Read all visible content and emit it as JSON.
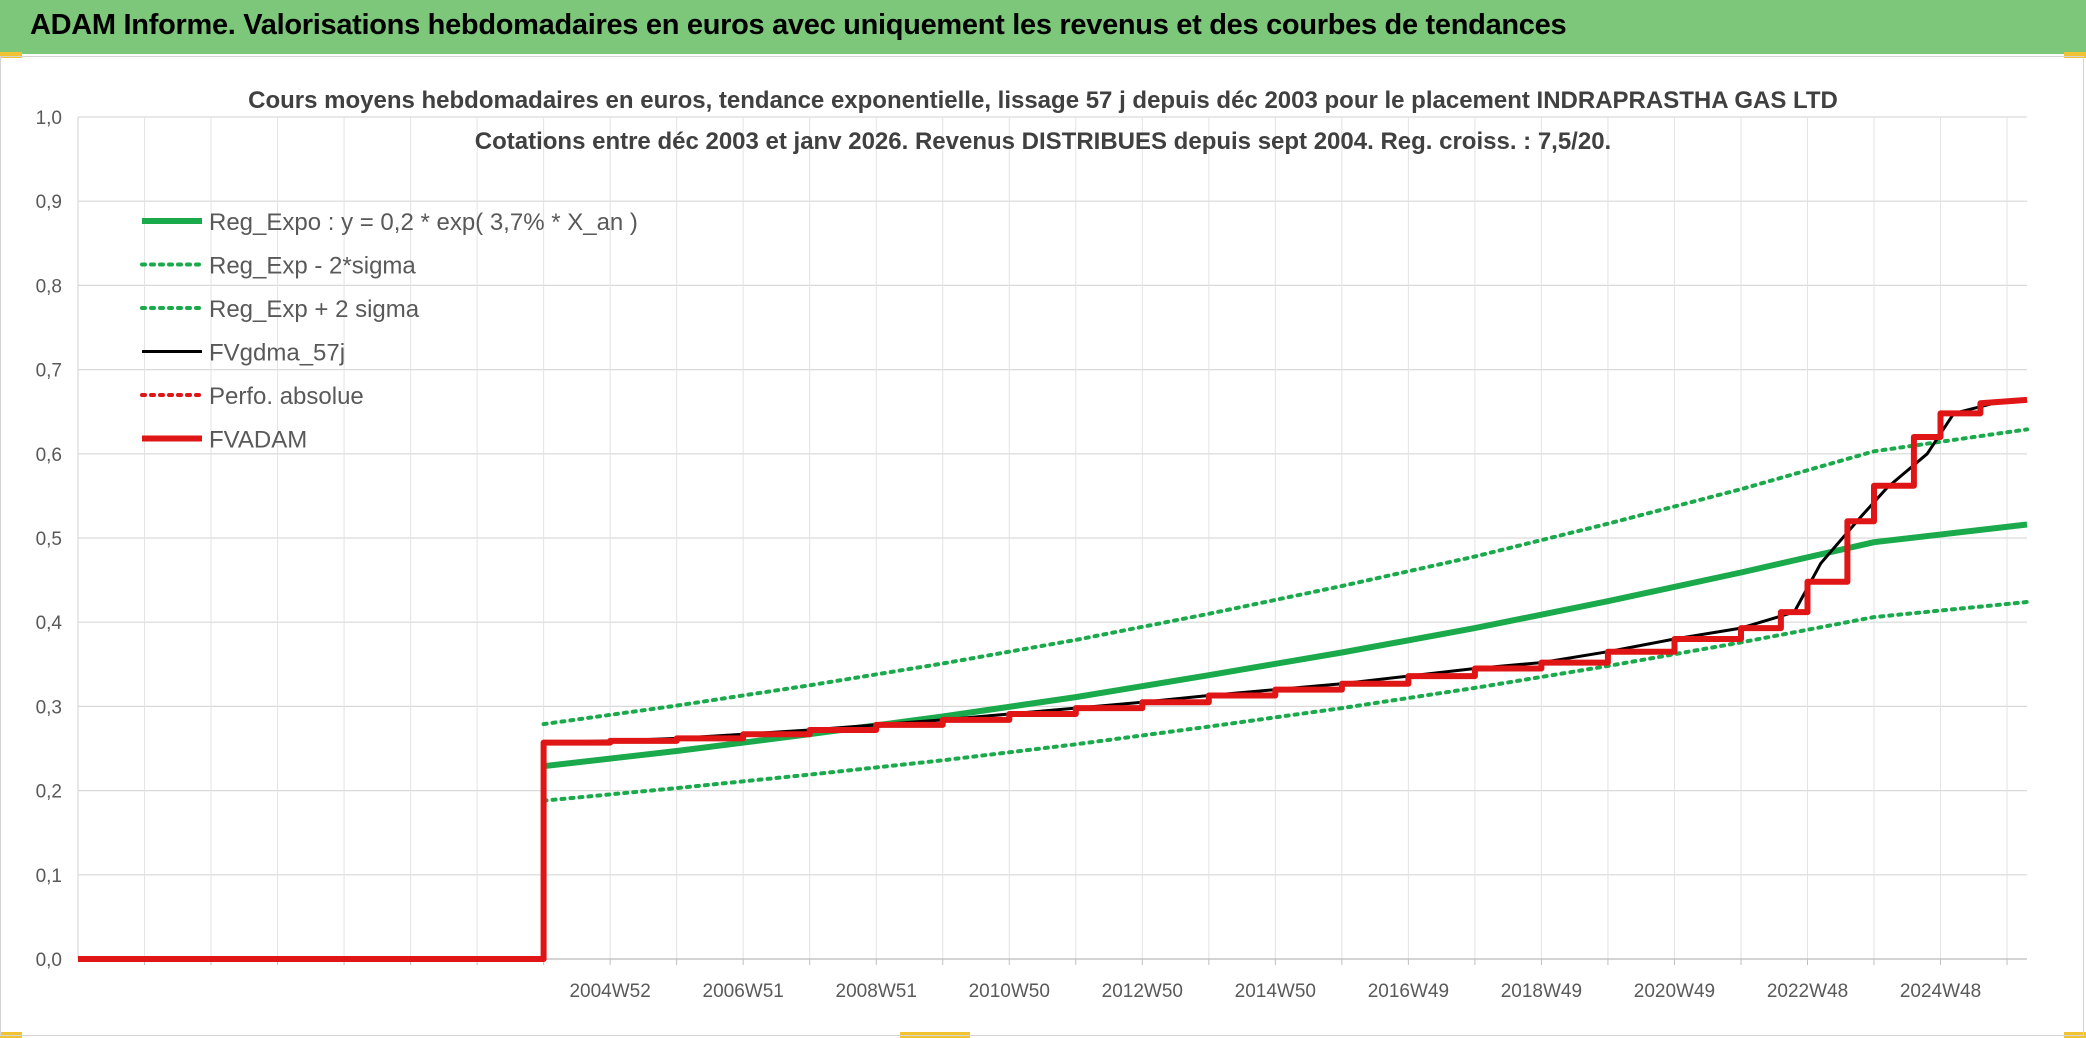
{
  "header": {
    "title": "ADAM Informe. Valorisations hebdomadaires en euros avec uniquement les revenus et des courbes de tendances"
  },
  "colors": {
    "header_bg": "#7dc77a",
    "reg_expo": "#1aaa4b",
    "sigma": "#1aaa4b",
    "fvgdma": "#000000",
    "perfo": "#e01515",
    "fvadam": "#e01515",
    "grid": "#d9d9d9"
  },
  "chart_data": {
    "type": "line",
    "title_line1": "Cours moyens hebdomadaires en euros, tendance exponentielle, lissage 57 j depuis déc 2003 pour le placement INDRAPRASTHA GAS LTD",
    "title_line2": "Cotations entre déc 2003 et janv 2026. Revenus DISTRIBUES depuis sept 2004. Reg. croiss. : 7,5/20.",
    "x_unit": "year",
    "xlim": [
      1997.0,
      2026.3
    ],
    "ylim": [
      0,
      1.0
    ],
    "y_ticks": [
      "0,0",
      "0,1",
      "0,2",
      "0,3",
      "0,4",
      "0,5",
      "0,6",
      "0,7",
      "0,8",
      "0,9",
      "1,0"
    ],
    "x_ticks": [
      {
        "label": "2004W52",
        "x": 2005.0
      },
      {
        "label": "2006W51",
        "x": 2007.0
      },
      {
        "label": "2008W51",
        "x": 2009.0
      },
      {
        "label": "2010W50",
        "x": 2011.0
      },
      {
        "label": "2012W50",
        "x": 2013.0
      },
      {
        "label": "2014W50",
        "x": 2015.0
      },
      {
        "label": "2016W49",
        "x": 2017.0
      },
      {
        "label": "2018W49",
        "x": 2019.0
      },
      {
        "label": "2020W49",
        "x": 2021.0
      },
      {
        "label": "2022W48",
        "x": 2023.0
      },
      {
        "label": "2024W48",
        "x": 2025.0
      }
    ],
    "legend_position": "top-left",
    "series": [
      {
        "name": "Reg_Expo : y = 0,2 * exp( 3,7% *  X_an )",
        "style": "solid-thick",
        "color": "#1aaa4b",
        "x": [
          2004.0,
          2006.0,
          2008.0,
          2010.0,
          2012.0,
          2014.0,
          2016.0,
          2018.0,
          2020.0,
          2022.0,
          2024.0,
          2026.3
        ],
        "y": [
          0.229,
          0.247,
          0.267,
          0.288,
          0.311,
          0.337,
          0.364,
          0.393,
          0.425,
          0.459,
          0.495,
          0.516
        ]
      },
      {
        "name": "Reg_Exp - 2*sigma",
        "style": "dotted",
        "color": "#1aaa4b",
        "x": [
          2004.0,
          2006.0,
          2008.0,
          2010.0,
          2012.0,
          2014.0,
          2016.0,
          2018.0,
          2020.0,
          2022.0,
          2024.0,
          2026.3
        ],
        "y": [
          0.188,
          0.203,
          0.219,
          0.236,
          0.255,
          0.276,
          0.298,
          0.322,
          0.348,
          0.376,
          0.406,
          0.424
        ]
      },
      {
        "name": "Reg_Exp + 2 sigma",
        "style": "dotted",
        "color": "#1aaa4b",
        "x": [
          2004.0,
          2006.0,
          2008.0,
          2010.0,
          2012.0,
          2014.0,
          2016.0,
          2018.0,
          2020.0,
          2022.0,
          2024.0,
          2026.3
        ],
        "y": [
          0.279,
          0.301,
          0.325,
          0.351,
          0.379,
          0.41,
          0.443,
          0.478,
          0.517,
          0.558,
          0.603,
          0.629
        ]
      },
      {
        "name": "FVgdma_57j",
        "style": "solid-thin",
        "color": "#000000",
        "x": [
          1997.0,
          2004.0,
          2004.0,
          2005.0,
          2006.0,
          2007.0,
          2008.0,
          2009.0,
          2010.0,
          2011.0,
          2012.0,
          2013.0,
          2014.0,
          2015.0,
          2016.0,
          2017.0,
          2018.0,
          2019.0,
          2020.0,
          2021.0,
          2022.0,
          2022.8,
          2023.2,
          2023.8,
          2024.2,
          2024.8,
          2025.2,
          2025.8,
          2026.3
        ],
        "y": [
          0.0,
          0.0,
          0.257,
          0.259,
          0.262,
          0.267,
          0.272,
          0.278,
          0.284,
          0.291,
          0.298,
          0.305,
          0.313,
          0.32,
          0.327,
          0.336,
          0.345,
          0.352,
          0.365,
          0.38,
          0.393,
          0.412,
          0.47,
          0.525,
          0.56,
          0.6,
          0.648,
          0.66,
          0.664
        ]
      },
      {
        "name": "Perfo. absolue",
        "style": "dotted",
        "color": "#e01515",
        "x": [
          1997.0,
          2004.0,
          2004.0,
          2026.3
        ],
        "y": [
          0.0,
          0.0,
          0.257,
          0.257
        ],
        "hidden_line": true
      },
      {
        "name": "FVADAM",
        "style": "solid-thick",
        "color": "#e01515",
        "x": [
          1997.0,
          2004.0,
          2004.0,
          2005.0,
          2005.0,
          2006.0,
          2006.0,
          2007.0,
          2007.0,
          2008.0,
          2008.0,
          2009.0,
          2009.0,
          2010.0,
          2010.0,
          2011.0,
          2011.0,
          2012.0,
          2012.0,
          2013.0,
          2013.0,
          2014.0,
          2014.0,
          2015.0,
          2015.0,
          2016.0,
          2016.0,
          2017.0,
          2017.0,
          2018.0,
          2018.0,
          2019.0,
          2019.0,
          2020.0,
          2020.0,
          2021.0,
          2021.0,
          2022.0,
          2022.0,
          2022.6,
          2022.6,
          2023.0,
          2023.0,
          2023.6,
          2023.6,
          2024.0,
          2024.0,
          2024.6,
          2024.6,
          2025.0,
          2025.0,
          2025.6,
          2025.6,
          2026.3
        ],
        "y": [
          0.0,
          0.0,
          0.257,
          0.257,
          0.259,
          0.259,
          0.262,
          0.262,
          0.267,
          0.267,
          0.272,
          0.272,
          0.278,
          0.278,
          0.284,
          0.284,
          0.291,
          0.291,
          0.298,
          0.298,
          0.305,
          0.305,
          0.313,
          0.313,
          0.32,
          0.32,
          0.327,
          0.327,
          0.336,
          0.336,
          0.345,
          0.345,
          0.352,
          0.352,
          0.365,
          0.365,
          0.38,
          0.38,
          0.393,
          0.393,
          0.412,
          0.412,
          0.448,
          0.448,
          0.52,
          0.52,
          0.562,
          0.562,
          0.62,
          0.62,
          0.648,
          0.648,
          0.66,
          0.664
        ]
      }
    ]
  }
}
